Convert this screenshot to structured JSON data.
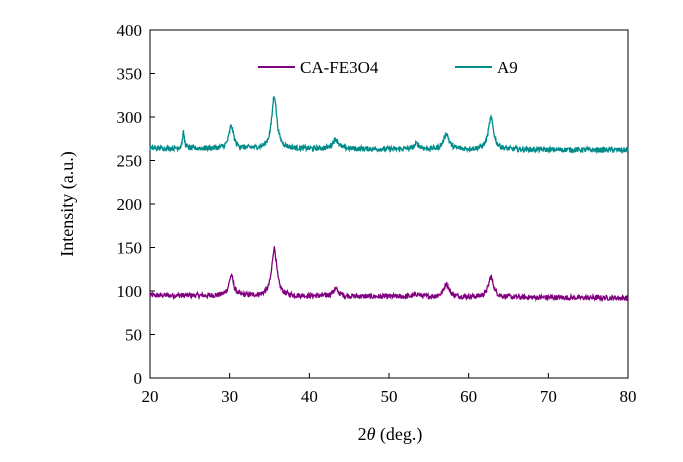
{
  "chart_data": {
    "type": "line",
    "xlabel_prefix": "2",
    "xlabel_symbol": "θ",
    "xlabel_suffix": " (deg.)",
    "ylabel": "Intensity (a.u.)",
    "xlim": [
      20,
      80
    ],
    "ylim": [
      0,
      400
    ],
    "xticks": [
      20,
      30,
      40,
      50,
      60,
      70,
      80
    ],
    "yticks": [
      0,
      50,
      100,
      150,
      200,
      250,
      300,
      350,
      400
    ],
    "grid": false,
    "legend_position": "top-center",
    "series": [
      {
        "name": "CA-FE3O4",
        "color": "#800080",
        "baseline": 95,
        "end_baseline": 92,
        "noise": 3,
        "peaks": [
          [
            30.2,
            118,
            0.35
          ],
          [
            35.6,
            150,
            0.38
          ],
          [
            43.3,
            103,
            0.45
          ],
          [
            53.5,
            98,
            0.4
          ],
          [
            57.2,
            110,
            0.4
          ],
          [
            62.8,
            118,
            0.4
          ]
        ]
      },
      {
        "name": "A9",
        "color": "#008B8B",
        "baseline": 264,
        "end_baseline": 262,
        "noise": 3,
        "peaks": [
          [
            24.2,
            282,
            0.15
          ],
          [
            30.2,
            290,
            0.35
          ],
          [
            35.6,
            325,
            0.38
          ],
          [
            43.3,
            275,
            0.45
          ],
          [
            53.5,
            270,
            0.4
          ],
          [
            57.2,
            282,
            0.4
          ],
          [
            62.8,
            300,
            0.4
          ]
        ]
      }
    ]
  }
}
